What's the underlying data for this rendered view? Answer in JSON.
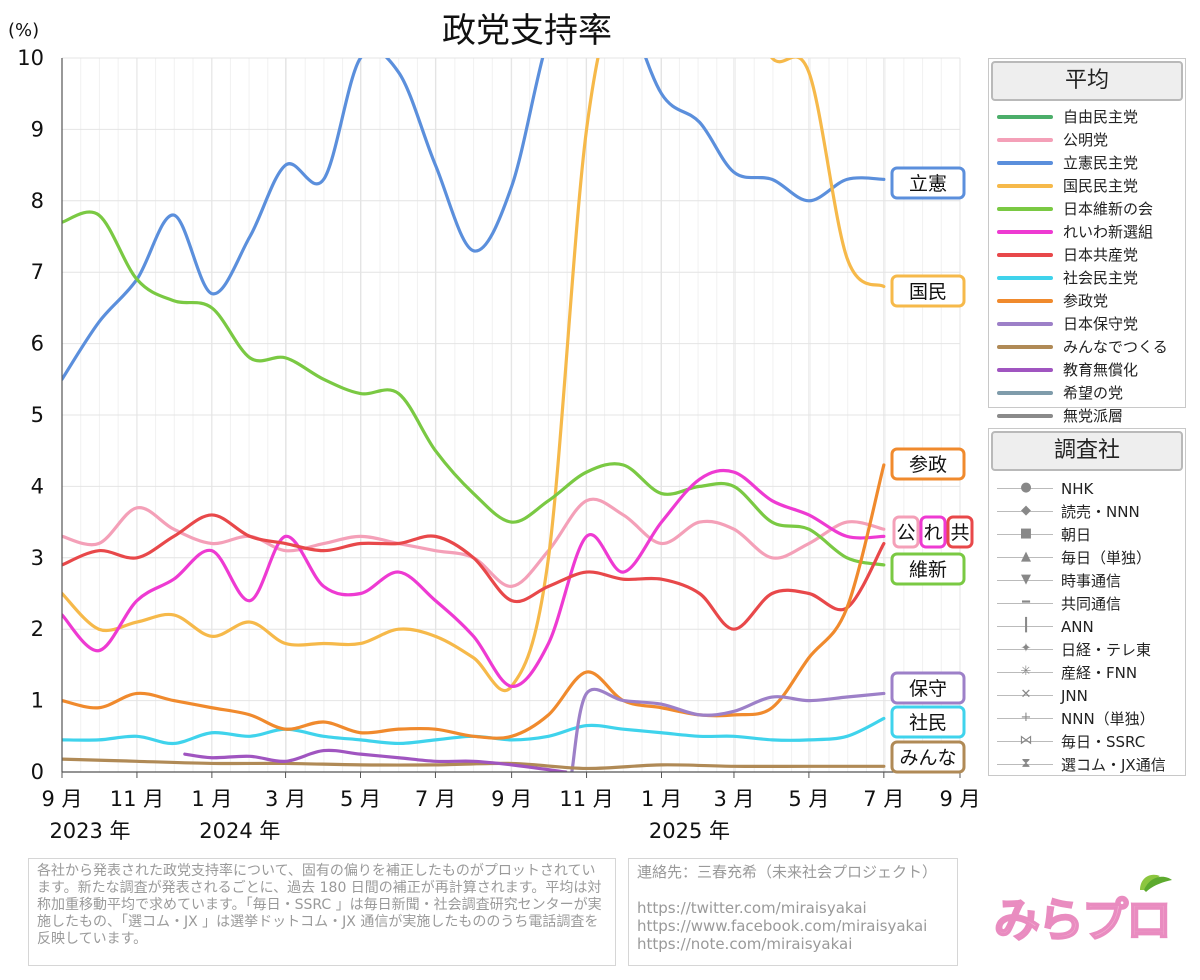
{
  "title": "政党支持率",
  "unit_label": "(%)",
  "colors": {
    "ldp": "#4cae6a",
    "komeito": "#f4a0b8",
    "cdp": "#5b8fdc",
    "dpfp": "#f6b94a",
    "ishin": "#7ac943",
    "reiwa": "#ee3ad2",
    "jcp": "#e8484a",
    "sdp": "#3fd3ec",
    "sanseito": "#f08a2d",
    "hoshu": "#9d80c8",
    "minna": "#b08a56",
    "kyoiku": "#a055c0",
    "kibou": "#7f9cab",
    "mutouha": "#8a8a8a"
  },
  "chart_data": {
    "type": "line",
    "title": "政党支持率",
    "ylabel": "(%)",
    "ylim": [
      0,
      10
    ],
    "yticks": [
      "0",
      "1",
      "2",
      "3",
      "4",
      "5",
      "6",
      "7",
      "8",
      "9",
      "10"
    ],
    "grid": true,
    "x_range": [
      "2023-09-01",
      "2025-09-01"
    ],
    "xticks": [
      {
        "date": "2023-09-01",
        "label": "9 月",
        "year": "2023 年"
      },
      {
        "date": "2023-11-01",
        "label": "11 月"
      },
      {
        "date": "2024-01-01",
        "label": "1 月",
        "year": "2024 年"
      },
      {
        "date": "2024-03-01",
        "label": "3 月"
      },
      {
        "date": "2024-05-01",
        "label": "5 月"
      },
      {
        "date": "2024-07-01",
        "label": "7 月"
      },
      {
        "date": "2024-09-01",
        "label": "9 月"
      },
      {
        "date": "2024-11-01",
        "label": "11 月"
      },
      {
        "date": "2025-01-01",
        "label": "1 月",
        "year": "2025 年"
      },
      {
        "date": "2025-03-01",
        "label": "3 月"
      },
      {
        "date": "2025-05-01",
        "label": "5 月"
      },
      {
        "date": "2025-07-01",
        "label": "7 月"
      },
      {
        "date": "2025-09-01",
        "label": "9 月"
      }
    ],
    "series": [
      {
        "key": "ldp",
        "name": "自由民主党",
        "label": "",
        "color": "#4cae6a",
        "dates": [],
        "values": []
      },
      {
        "key": "komeito",
        "name": "公明党",
        "label": "公",
        "color": "#f4a0b8",
        "dates": [
          "2023-09-01",
          "2023-10-01",
          "2023-11-01",
          "2023-12-01",
          "2024-01-01",
          "2024-02-01",
          "2024-03-01",
          "2024-04-01",
          "2024-05-01",
          "2024-06-01",
          "2024-07-01",
          "2024-08-01",
          "2024-09-01",
          "2024-10-01",
          "2024-11-01",
          "2024-12-01",
          "2025-01-01",
          "2025-02-01",
          "2025-03-01",
          "2025-04-01",
          "2025-05-01",
          "2025-06-01",
          "2025-07-01"
        ],
        "values": [
          3.3,
          3.2,
          3.7,
          3.4,
          3.2,
          3.3,
          3.1,
          3.2,
          3.3,
          3.2,
          3.1,
          3.0,
          2.6,
          3.1,
          3.8,
          3.6,
          3.2,
          3.5,
          3.4,
          3.0,
          3.2,
          3.5,
          3.4
        ]
      },
      {
        "key": "cdp",
        "name": "立憲民主党",
        "label": "立憲",
        "color": "#5b8fdc",
        "dates": [
          "2023-09-01",
          "2023-10-01",
          "2023-11-01",
          "2023-12-01",
          "2024-01-01",
          "2024-02-01",
          "2024-03-01",
          "2024-04-01",
          "2024-05-01",
          "2024-06-01",
          "2024-07-01",
          "2024-08-01",
          "2024-09-01",
          "2024-10-01",
          "2024-11-01",
          "2024-12-01",
          "2025-01-01",
          "2025-02-01",
          "2025-03-01",
          "2025-04-01",
          "2025-05-01",
          "2025-06-01",
          "2025-07-01"
        ],
        "values": [
          5.5,
          6.3,
          6.9,
          7.8,
          6.7,
          7.5,
          8.5,
          8.3,
          10.0,
          9.8,
          8.5,
          7.3,
          8.2,
          10.3,
          11.5,
          10.8,
          9.5,
          9.1,
          8.4,
          8.3,
          8.0,
          8.3,
          8.3
        ]
      },
      {
        "key": "dpfp",
        "name": "国民民主党",
        "label": "国民",
        "color": "#f6b94a",
        "dates": [
          "2023-09-01",
          "2023-10-01",
          "2023-11-01",
          "2023-12-01",
          "2024-01-01",
          "2024-02-01",
          "2024-03-01",
          "2024-04-01",
          "2024-05-01",
          "2024-06-01",
          "2024-07-01",
          "2024-08-01",
          "2024-09-01",
          "2024-10-01",
          "2024-11-01",
          "2024-12-01",
          "2025-01-01",
          "2025-02-01",
          "2025-03-01",
          "2025-04-01",
          "2025-05-01",
          "2025-06-01",
          "2025-07-01"
        ],
        "values": [
          2.5,
          2.0,
          2.1,
          2.2,
          1.9,
          2.1,
          1.8,
          1.8,
          1.8,
          2.0,
          1.9,
          1.6,
          1.2,
          3.0,
          9.0,
          11.0,
          10.2,
          10.5,
          11.0,
          10.0,
          9.8,
          7.2,
          6.8
        ]
      },
      {
        "key": "ishin",
        "name": "日本維新の会",
        "label": "維新",
        "color": "#7ac943",
        "dates": [
          "2023-09-01",
          "2023-10-01",
          "2023-11-01",
          "2023-12-01",
          "2024-01-01",
          "2024-02-01",
          "2024-03-01",
          "2024-04-01",
          "2024-05-01",
          "2024-06-01",
          "2024-07-01",
          "2024-08-01",
          "2024-09-01",
          "2024-10-01",
          "2024-11-01",
          "2024-12-01",
          "2025-01-01",
          "2025-02-01",
          "2025-03-01",
          "2025-04-01",
          "2025-05-01",
          "2025-06-01",
          "2025-07-01"
        ],
        "values": [
          7.7,
          7.8,
          6.9,
          6.6,
          6.5,
          5.8,
          5.8,
          5.5,
          5.3,
          5.3,
          4.5,
          3.9,
          3.5,
          3.8,
          4.2,
          4.3,
          3.9,
          4.0,
          4.0,
          3.5,
          3.4,
          3.0,
          2.9
        ]
      },
      {
        "key": "reiwa",
        "name": "れいわ新選組",
        "label": "れ",
        "color": "#ee3ad2",
        "dates": [
          "2023-09-01",
          "2023-10-01",
          "2023-11-01",
          "2023-12-01",
          "2024-01-01",
          "2024-02-01",
          "2024-03-01",
          "2024-04-01",
          "2024-05-01",
          "2024-06-01",
          "2024-07-01",
          "2024-08-01",
          "2024-09-01",
          "2024-10-01",
          "2024-11-01",
          "2024-12-01",
          "2025-01-01",
          "2025-02-01",
          "2025-03-01",
          "2025-04-01",
          "2025-05-01",
          "2025-06-01",
          "2025-07-01"
        ],
        "values": [
          2.2,
          1.7,
          2.4,
          2.7,
          3.1,
          2.4,
          3.3,
          2.6,
          2.5,
          2.8,
          2.4,
          1.9,
          1.2,
          1.8,
          3.3,
          2.8,
          3.5,
          4.1,
          4.2,
          3.8,
          3.6,
          3.3,
          3.3
        ]
      },
      {
        "key": "jcp",
        "name": "日本共産党",
        "label": "共",
        "color": "#e8484a",
        "dates": [
          "2023-09-01",
          "2023-10-01",
          "2023-11-01",
          "2023-12-01",
          "2024-01-01",
          "2024-02-01",
          "2024-03-01",
          "2024-04-01",
          "2024-05-01",
          "2024-06-01",
          "2024-07-01",
          "2024-08-01",
          "2024-09-01",
          "2024-10-01",
          "2024-11-01",
          "2024-12-01",
          "2025-01-01",
          "2025-02-01",
          "2025-03-01",
          "2025-04-01",
          "2025-05-01",
          "2025-06-01",
          "2025-07-01"
        ],
        "values": [
          2.9,
          3.1,
          3.0,
          3.3,
          3.6,
          3.3,
          3.2,
          3.1,
          3.2,
          3.2,
          3.3,
          3.0,
          2.4,
          2.6,
          2.8,
          2.7,
          2.7,
          2.5,
          2.0,
          2.5,
          2.5,
          2.3,
          3.2
        ]
      },
      {
        "key": "sdp",
        "name": "社会民主党",
        "label": "社民",
        "color": "#3fd3ec",
        "dates": [
          "2023-09-01",
          "2023-10-01",
          "2023-11-01",
          "2023-12-01",
          "2024-01-01",
          "2024-02-01",
          "2024-03-01",
          "2024-04-01",
          "2024-05-01",
          "2024-06-01",
          "2024-07-01",
          "2024-08-01",
          "2024-09-01",
          "2024-10-01",
          "2024-11-01",
          "2024-12-01",
          "2025-01-01",
          "2025-02-01",
          "2025-03-01",
          "2025-04-01",
          "2025-05-01",
          "2025-06-01",
          "2025-07-01"
        ],
        "values": [
          0.45,
          0.45,
          0.5,
          0.4,
          0.55,
          0.5,
          0.6,
          0.5,
          0.45,
          0.4,
          0.45,
          0.5,
          0.45,
          0.5,
          0.65,
          0.6,
          0.55,
          0.5,
          0.5,
          0.45,
          0.45,
          0.5,
          0.75
        ]
      },
      {
        "key": "sanseito",
        "name": "参政党",
        "label": "参政",
        "color": "#f08a2d",
        "dates": [
          "2023-09-01",
          "2023-10-01",
          "2023-11-01",
          "2023-12-01",
          "2024-01-01",
          "2024-02-01",
          "2024-03-01",
          "2024-04-01",
          "2024-05-01",
          "2024-06-01",
          "2024-07-01",
          "2024-08-01",
          "2024-09-01",
          "2024-10-01",
          "2024-11-01",
          "2024-12-01",
          "2025-01-01",
          "2025-02-01",
          "2025-03-01",
          "2025-04-01",
          "2025-05-01",
          "2025-06-01",
          "2025-07-01"
        ],
        "values": [
          1.0,
          0.9,
          1.1,
          1.0,
          0.9,
          0.8,
          0.6,
          0.7,
          0.55,
          0.6,
          0.6,
          0.5,
          0.5,
          0.8,
          1.4,
          1.0,
          0.9,
          0.8,
          0.8,
          0.9,
          1.6,
          2.3,
          4.3
        ]
      },
      {
        "key": "hoshu",
        "name": "日本保守党",
        "label": "保守",
        "color": "#9d80c8",
        "dates": [
          "2024-10-20",
          "2024-11-01",
          "2024-12-01",
          "2025-01-01",
          "2025-02-01",
          "2025-03-01",
          "2025-04-01",
          "2025-05-01",
          "2025-06-01",
          "2025-07-01"
        ],
        "values": [
          0.0,
          1.1,
          1.0,
          0.95,
          0.8,
          0.85,
          1.05,
          1.0,
          1.05,
          1.1
        ]
      },
      {
        "key": "minna",
        "name": "みんなでつくる",
        "label": "みんな",
        "color": "#b08a56",
        "dates": [
          "2023-09-01",
          "2023-11-01",
          "2024-01-01",
          "2024-03-01",
          "2024-05-01",
          "2024-07-01",
          "2024-09-01",
          "2024-11-01",
          "2025-01-01",
          "2025-03-01",
          "2025-05-01",
          "2025-07-01"
        ],
        "values": [
          0.18,
          0.15,
          0.12,
          0.12,
          0.1,
          0.1,
          0.12,
          0.05,
          0.1,
          0.08,
          0.08,
          0.08
        ]
      },
      {
        "key": "kyoiku",
        "name": "教育無償化",
        "label": "",
        "color": "#a055c0",
        "dates": [
          "2023-12-10",
          "2024-01-01",
          "2024-02-01",
          "2024-03-01",
          "2024-04-01",
          "2024-05-01",
          "2024-06-01",
          "2024-07-01",
          "2024-08-01",
          "2024-09-01",
          "2024-10-15"
        ],
        "values": [
          0.25,
          0.2,
          0.22,
          0.15,
          0.3,
          0.25,
          0.2,
          0.15,
          0.15,
          0.1,
          0.0
        ]
      },
      {
        "key": "kibou",
        "name": "希望の党",
        "label": "",
        "color": "#7f9cab",
        "dates": [],
        "values": []
      },
      {
        "key": "mutouha",
        "name": "無党派層",
        "label": "",
        "color": "#8a8a8a",
        "dates": [],
        "values": []
      }
    ],
    "line_labels": [
      {
        "text": "立憲",
        "color": "#5b8fdc",
        "y": 8.3
      },
      {
        "text": "国民",
        "color": "#f6b94a",
        "y": 6.8
      },
      {
        "text": "参政",
        "color": "#f08a2d",
        "y": 4.3
      },
      {
        "text": "公",
        "color": "#f4a0b8",
        "y": 3.4
      },
      {
        "text": "れ",
        "color": "#ee3ad2",
        "y": 3.4
      },
      {
        "text": "共",
        "color": "#e8484a",
        "y": 3.4
      },
      {
        "text": "維新",
        "color": "#7ac943",
        "y": 2.85
      },
      {
        "text": "保守",
        "color": "#9d80c8",
        "y": 1.15
      },
      {
        "text": "社民",
        "color": "#3fd3ec",
        "y": 0.7
      },
      {
        "text": "みんな",
        "color": "#b08a56",
        "y": 0.2
      }
    ]
  },
  "legend_avg": {
    "title": "平均",
    "items": [
      {
        "label": "自由民主党",
        "color": "#4cae6a"
      },
      {
        "label": "公明党",
        "color": "#f4a0b8"
      },
      {
        "label": "立憲民主党",
        "color": "#5b8fdc"
      },
      {
        "label": "国民民主党",
        "color": "#f6b94a"
      },
      {
        "label": "日本維新の会",
        "color": "#7ac943"
      },
      {
        "label": "れいわ新選組",
        "color": "#ee3ad2"
      },
      {
        "label": "日本共産党",
        "color": "#e8484a"
      },
      {
        "label": "社会民主党",
        "color": "#3fd3ec"
      },
      {
        "label": "参政党",
        "color": "#f08a2d"
      },
      {
        "label": "日本保守党",
        "color": "#9d80c8"
      },
      {
        "label": "みんなでつくる",
        "color": "#b08a56"
      },
      {
        "label": "教育無償化",
        "color": "#a055c0"
      },
      {
        "label": "希望の党",
        "color": "#7f9cab"
      },
      {
        "label": "無党派層",
        "color": "#8a8a8a"
      }
    ]
  },
  "legend_pollsters": {
    "title": "調査社",
    "items": [
      {
        "label": "NHK",
        "icon": "circle-marker",
        "glyph": "●"
      },
      {
        "label": "読売・NNN",
        "icon": "diamond-marker",
        "glyph": "◆"
      },
      {
        "label": "朝日",
        "icon": "square-marker",
        "glyph": "■"
      },
      {
        "label": "毎日（単独）",
        "icon": "triangle-up-marker",
        "glyph": "▲"
      },
      {
        "label": "時事通信",
        "icon": "triangle-down-marker",
        "glyph": "▼"
      },
      {
        "label": "共同通信",
        "icon": "dash-marker",
        "glyph": "━"
      },
      {
        "label": "ANN",
        "icon": "vbar-marker",
        "glyph": "┃"
      },
      {
        "label": "日経・テレ東",
        "icon": "star4-marker",
        "glyph": "✦"
      },
      {
        "label": "産経・FNN",
        "icon": "asterisk-marker",
        "glyph": "✳"
      },
      {
        "label": "JNN",
        "icon": "x-marker",
        "glyph": "✕"
      },
      {
        "label": "NNN（単独）",
        "icon": "plus-marker",
        "glyph": "+"
      },
      {
        "label": "毎日・SSRC",
        "icon": "bowtie-marker",
        "glyph": "⋈"
      },
      {
        "label": "選コム・JX通信",
        "icon": "hourglass-marker",
        "glyph": "⧗"
      }
    ]
  },
  "note": "各社から発表された政党支持率について、固有の偏りを補正したものがプロットされています。新たな調査が発表されるごとに、過去 180 日間の補正が再計算されます。平均は対称加重移動平均で求めています。「毎日・SSRC 」は毎日新聞・社会調査研究センターが実施したもの、「選コム・JX 」は選挙ドットコム・JX 通信が実施したもののうち電話調査を反映しています。",
  "contact": {
    "label": "連絡先：三春充希（未来社会プロジェクト）",
    "links": [
      "https://twitter.com/miraisyakai",
      "https://www.facebook.com/miraisyakai",
      "https://note.com/miraisyakai"
    ]
  },
  "logo_text": "みらプロ"
}
